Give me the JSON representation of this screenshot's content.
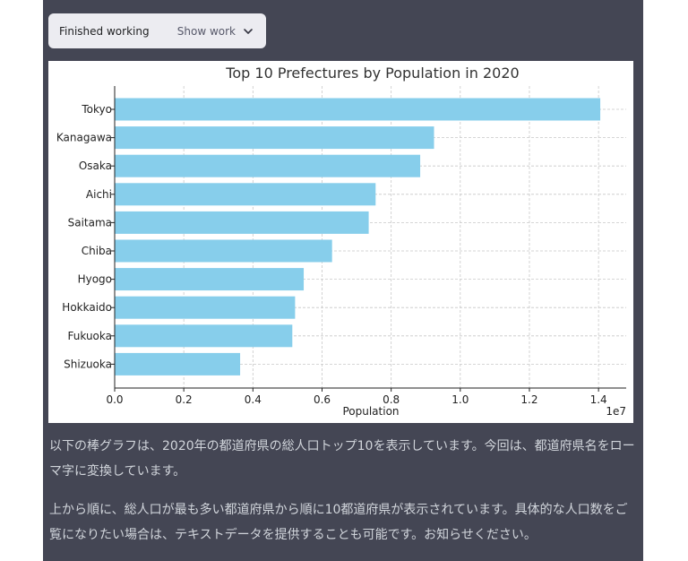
{
  "status": {
    "label": "Finished working",
    "toggle_label": "Show work"
  },
  "chart_data": {
    "type": "bar",
    "orientation": "horizontal",
    "title": "Top 10 Prefectures by Population in 2020",
    "xlabel": "Population",
    "ylabel": "",
    "x_multiplier_label": "1e7",
    "xlim": [
      0,
      14800000
    ],
    "xticks": [
      0,
      2000000,
      4000000,
      6000000,
      8000000,
      10000000,
      12000000,
      14000000
    ],
    "xtick_labels": [
      "0.0",
      "0.2",
      "0.4",
      "0.6",
      "0.8",
      "1.0",
      "1.2",
      "1.4"
    ],
    "categories": [
      "Tokyo",
      "Kanagawa",
      "Osaka",
      "Aichi",
      "Saitama",
      "Chiba",
      "Hyogo",
      "Hokkaido",
      "Fukuoka",
      "Shizuoka"
    ],
    "values": [
      14050000,
      9240000,
      8840000,
      7550000,
      7350000,
      6290000,
      5470000,
      5220000,
      5140000,
      3630000
    ],
    "bar_color": "#87ceeb",
    "grid": true
  },
  "message": {
    "paragraphs": [
      "以下の棒グラフは、2020年の都道府県の総人口トップ10を表示しています。今回は、都道府県名をローマ字に変換しています。",
      "上から順に、総人口が最も多い都道府県から順に10都道府県が表示されています。具体的な人口数をご覧になりたい場合は、テキストデータを提供することも可能です。お知らせください。"
    ]
  }
}
